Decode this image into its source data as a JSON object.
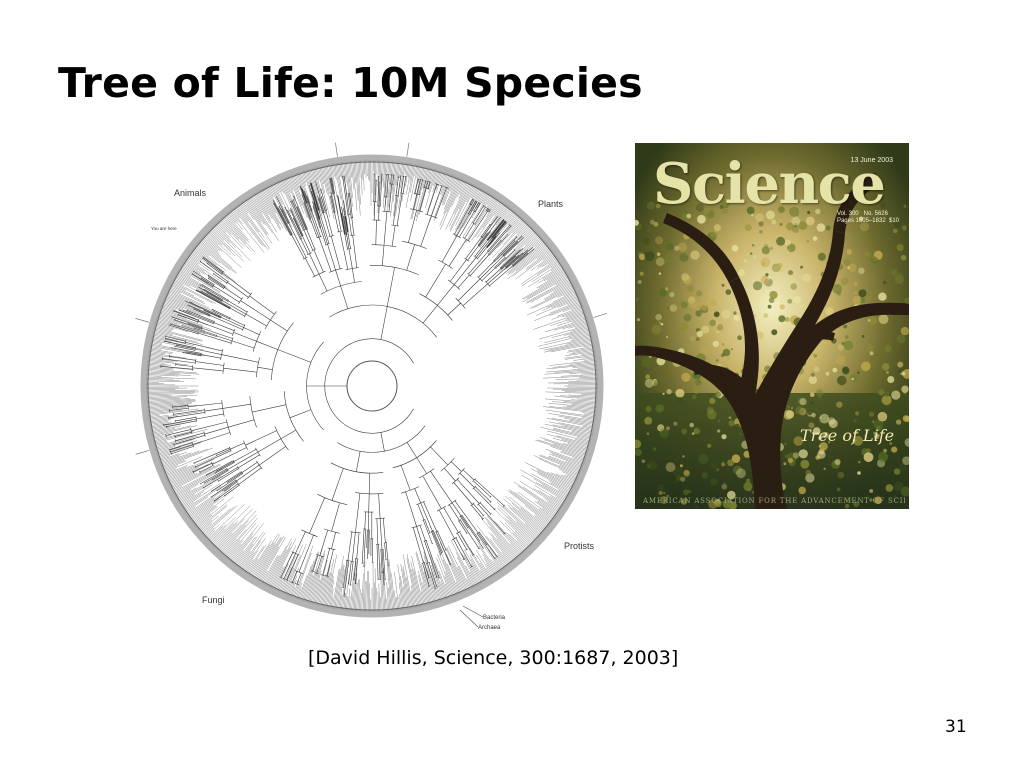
{
  "slide": {
    "title": "Tree of Life: 10M Species",
    "citation": "[David Hillis, Science, 300:1687, 2003]",
    "page_number": "31"
  },
  "tree_figure": {
    "labels": {
      "animals": "Animals",
      "you_are_here": "You are here",
      "plants": "Plants",
      "protists": "Protists",
      "fungi": "Fungi",
      "bacteria": "Bacteria",
      "archaea": "Archaea"
    }
  },
  "cover": {
    "masthead": "Science",
    "date": "13 June 2003",
    "issue_line1": "Vol. 300   No. 5626",
    "issue_line2": "Pages 1605–1832  $10",
    "headline": "Tree of Life",
    "footer": "AMERICAN ASSOCIATION FOR THE ADVANCEMENT OF SCIENCE"
  }
}
